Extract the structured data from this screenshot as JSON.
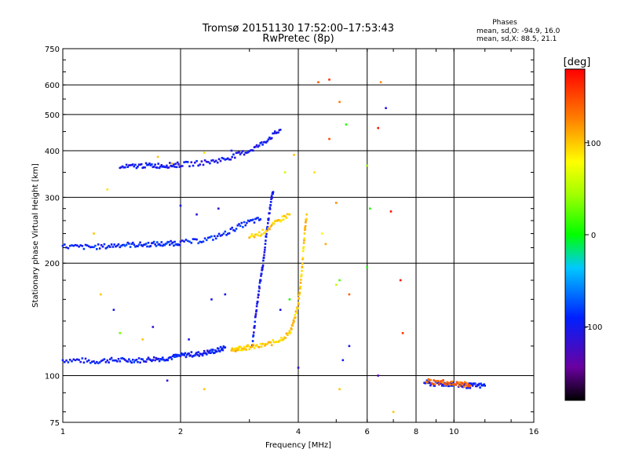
{
  "chart_data": {
    "type": "scatter",
    "title": "Tromsø 20151130 17:52:00–17:53:43",
    "subtitle": "RwPretec (8p)",
    "xlabel": "Frequency [MHz]",
    "ylabel": "Stationary phase Virtual Height [km]",
    "x_scale": "log",
    "y_scale": "log",
    "xlim": [
      1,
      16
    ],
    "ylim": [
      75,
      750
    ],
    "grid": true,
    "x_ticks": [
      1,
      2,
      4,
      6,
      8,
      10,
      16
    ],
    "x_tick_labels": [
      "1",
      "2",
      "4",
      "6",
      "8",
      "10",
      "16"
    ],
    "y_ticks": [
      75,
      100,
      200,
      300,
      400,
      500,
      600,
      750
    ],
    "y_tick_labels": [
      "75",
      "100",
      "200",
      "300",
      "400",
      "500",
      "600",
      "750"
    ],
    "phase_stats": {
      "title": "Phases",
      "line_o": "mean, sd,O: -94.9, 16.0",
      "line_x": "mean, sd,X:  88.5, 21.1"
    },
    "colorbar": {
      "label": "[deg]",
      "range": [
        -180,
        180
      ],
      "ticks": [
        100,
        0,
        -100
      ],
      "tick_labels": [
        "100",
        "0",
        "-100"
      ]
    },
    "traces": [
      {
        "name": "O low",
        "phase": -95,
        "points": [
          [
            1.0,
            110
          ],
          [
            1.1,
            110
          ],
          [
            1.2,
            109
          ],
          [
            1.3,
            110
          ],
          [
            1.4,
            110
          ],
          [
            1.5,
            110
          ],
          [
            1.6,
            110
          ],
          [
            1.7,
            111
          ],
          [
            1.8,
            111
          ],
          [
            1.9,
            112
          ],
          [
            2.0,
            113
          ],
          [
            2.1,
            114
          ],
          [
            2.2,
            114
          ],
          [
            2.3,
            115
          ],
          [
            2.4,
            116
          ],
          [
            2.5,
            117
          ],
          [
            2.6,
            119
          ]
        ]
      },
      {
        "name": "O low steep",
        "phase": -100,
        "points": [
          [
            3.05,
            120
          ],
          [
            3.1,
            140
          ],
          [
            3.15,
            160
          ],
          [
            3.2,
            180
          ],
          [
            3.25,
            200
          ],
          [
            3.3,
            230
          ],
          [
            3.35,
            260
          ],
          [
            3.4,
            290
          ],
          [
            3.45,
            310
          ]
        ]
      },
      {
        "name": "X low",
        "phase": 100,
        "points": [
          [
            2.7,
            118
          ],
          [
            2.8,
            118
          ],
          [
            2.9,
            119
          ],
          [
            3.0,
            119
          ],
          [
            3.2,
            120
          ],
          [
            3.4,
            122
          ],
          [
            3.6,
            125
          ],
          [
            3.8,
            130
          ],
          [
            3.9,
            140
          ],
          [
            4.0,
            155
          ],
          [
            4.05,
            175
          ],
          [
            4.1,
            200
          ],
          [
            4.15,
            240
          ],
          [
            4.2,
            270
          ]
        ]
      },
      {
        "name": "O middle",
        "phase": -90,
        "points": [
          [
            1.0,
            222
          ],
          [
            1.1,
            221
          ],
          [
            1.2,
            221
          ],
          [
            1.3,
            222
          ],
          [
            1.4,
            224
          ],
          [
            1.5,
            224
          ],
          [
            1.6,
            224
          ],
          [
            1.7,
            225
          ],
          [
            1.8,
            225
          ],
          [
            1.9,
            226
          ],
          [
            2.0,
            227
          ],
          [
            2.2,
            229
          ],
          [
            2.4,
            233
          ],
          [
            2.6,
            240
          ],
          [
            2.8,
            250
          ],
          [
            3.0,
            258
          ],
          [
            3.2,
            262
          ]
        ]
      },
      {
        "name": "X middle",
        "phase": 100,
        "points": [
          [
            3.0,
            235
          ],
          [
            3.2,
            240
          ],
          [
            3.4,
            250
          ],
          [
            3.6,
            262
          ],
          [
            3.8,
            270
          ]
        ]
      },
      {
        "name": "O upper",
        "phase": -100,
        "points": [
          [
            1.4,
            360
          ],
          [
            1.5,
            363
          ],
          [
            1.6,
            365
          ],
          [
            1.7,
            365
          ],
          [
            1.8,
            365
          ],
          [
            1.9,
            366
          ],
          [
            2.0,
            367
          ],
          [
            2.2,
            370
          ],
          [
            2.4,
            374
          ],
          [
            2.6,
            380
          ],
          [
            2.8,
            390
          ],
          [
            3.0,
            400
          ],
          [
            3.2,
            415
          ],
          [
            3.4,
            435
          ],
          [
            3.6,
            455
          ]
        ]
      },
      {
        "name": "O high tail",
        "phase": -95,
        "points": [
          [
            8.4,
            96
          ],
          [
            8.8,
            95
          ],
          [
            9.2,
            95
          ],
          [
            9.6,
            95
          ],
          [
            10.0,
            95
          ],
          [
            10.5,
            94
          ],
          [
            11.0,
            94
          ],
          [
            11.5,
            94
          ],
          [
            12.0,
            94
          ]
        ]
      },
      {
        "name": "X high tail",
        "phase": 140,
        "points": [
          [
            8.5,
            97
          ],
          [
            9.0,
            96
          ],
          [
            9.5,
            96
          ],
          [
            10.0,
            95
          ],
          [
            10.5,
            95
          ],
          [
            11.0,
            94
          ]
        ]
      }
    ],
    "scattered_points": [
      {
        "x": 4.5,
        "y": 610,
        "phase": 140
      },
      {
        "x": 4.8,
        "y": 620,
        "phase": 160
      },
      {
        "x": 5.1,
        "y": 540,
        "phase": 130
      },
      {
        "x": 5.3,
        "y": 470,
        "phase": 10
      },
      {
        "x": 6.5,
        "y": 610,
        "phase": 120
      },
      {
        "x": 6.7,
        "y": 520,
        "phase": -110
      },
      {
        "x": 6.4,
        "y": 460,
        "phase": 170
      },
      {
        "x": 6.0,
        "y": 365,
        "phase": 40
      },
      {
        "x": 6.1,
        "y": 280,
        "phase": 10
      },
      {
        "x": 6.9,
        "y": 275,
        "phase": 175
      },
      {
        "x": 6.0,
        "y": 195,
        "phase": 5
      },
      {
        "x": 5.0,
        "y": 175,
        "phase": 60
      },
      {
        "x": 5.4,
        "y": 165,
        "phase": 140
      },
      {
        "x": 7.3,
        "y": 180,
        "phase": 175
      },
      {
        "x": 7.4,
        "y": 130,
        "phase": 160
      },
      {
        "x": 5.4,
        "y": 120,
        "phase": -110
      },
      {
        "x": 5.2,
        "y": 110,
        "phase": -100
      },
      {
        "x": 5.1,
        "y": 92,
        "phase": 100
      },
      {
        "x": 6.4,
        "y": 100,
        "phase": -130
      },
      {
        "x": 7.0,
        "y": 80,
        "phase": 100
      },
      {
        "x": 4.0,
        "y": 105,
        "phase": -110
      },
      {
        "x": 2.3,
        "y": 92,
        "phase": 100
      },
      {
        "x": 1.85,
        "y": 97,
        "phase": -110
      },
      {
        "x": 4.8,
        "y": 430,
        "phase": 150
      },
      {
        "x": 4.4,
        "y": 350,
        "phase": 90
      },
      {
        "x": 5.0,
        "y": 290,
        "phase": 120
      },
      {
        "x": 4.6,
        "y": 240,
        "phase": 80
      },
      {
        "x": 4.7,
        "y": 225,
        "phase": 110
      },
      {
        "x": 5.1,
        "y": 180,
        "phase": 20
      },
      {
        "x": 1.9,
        "y": 370,
        "phase": 100
      },
      {
        "x": 1.75,
        "y": 385,
        "phase": 100
      },
      {
        "x": 1.3,
        "y": 315,
        "phase": 90
      },
      {
        "x": 1.2,
        "y": 240,
        "phase": 100
      },
      {
        "x": 1.25,
        "y": 165,
        "phase": 100
      },
      {
        "x": 1.35,
        "y": 150,
        "phase": -100
      },
      {
        "x": 1.4,
        "y": 130,
        "phase": 30
      },
      {
        "x": 1.6,
        "y": 125,
        "phase": 100
      },
      {
        "x": 1.7,
        "y": 135,
        "phase": -110
      },
      {
        "x": 2.4,
        "y": 160,
        "phase": -100
      },
      {
        "x": 2.6,
        "y": 165,
        "phase": -100
      },
      {
        "x": 2.1,
        "y": 125,
        "phase": -100
      },
      {
        "x": 2.0,
        "y": 285,
        "phase": -100
      },
      {
        "x": 2.2,
        "y": 270,
        "phase": -110
      },
      {
        "x": 2.5,
        "y": 280,
        "phase": -110
      },
      {
        "x": 2.3,
        "y": 395,
        "phase": 90
      },
      {
        "x": 2.7,
        "y": 400,
        "phase": -100
      },
      {
        "x": 3.9,
        "y": 390,
        "phase": 100
      },
      {
        "x": 3.7,
        "y": 350,
        "phase": 60
      },
      {
        "x": 3.8,
        "y": 160,
        "phase": 10
      },
      {
        "x": 3.6,
        "y": 150,
        "phase": -100
      }
    ]
  }
}
